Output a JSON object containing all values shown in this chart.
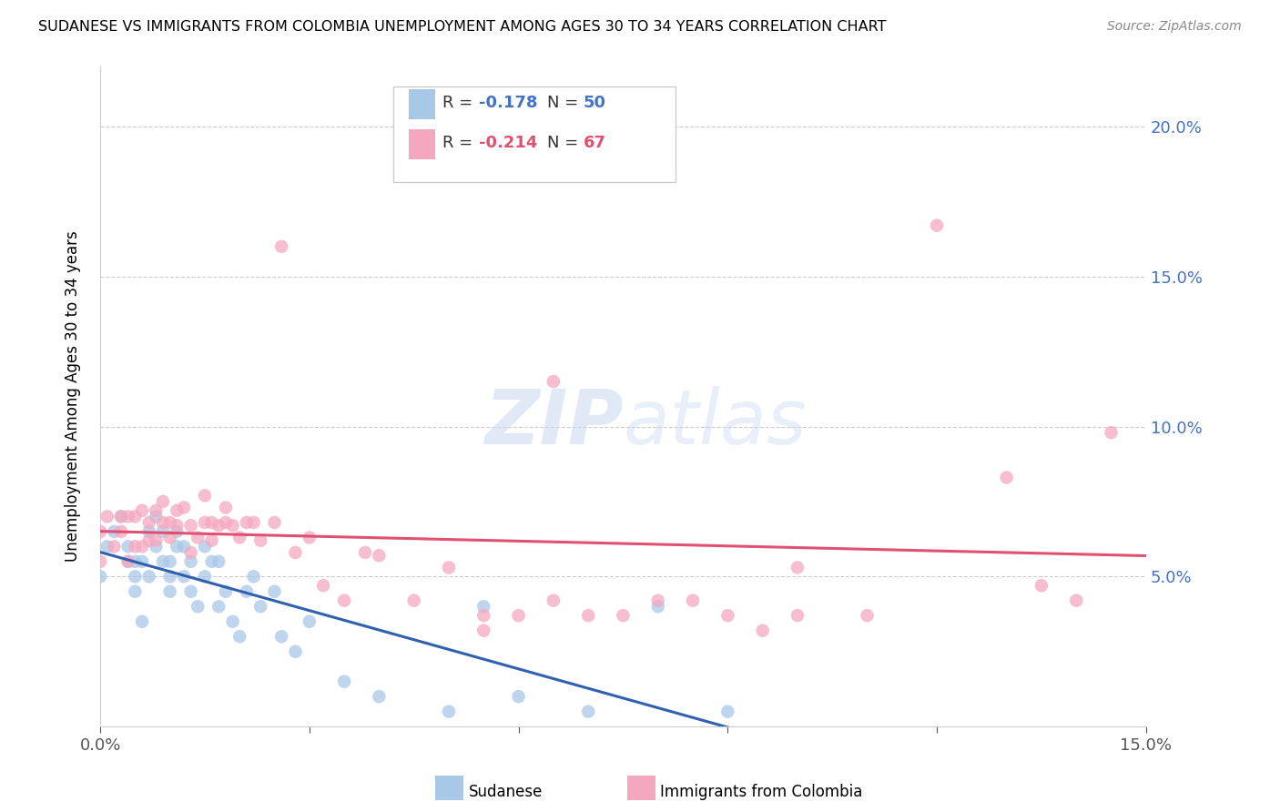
{
  "title": "SUDANESE VS IMMIGRANTS FROM COLOMBIA UNEMPLOYMENT AMONG AGES 30 TO 34 YEARS CORRELATION CHART",
  "source": "Source: ZipAtlas.com",
  "ylabel": "Unemployment Among Ages 30 to 34 years",
  "xlim": [
    0.0,
    0.15
  ],
  "ylim": [
    0.0,
    0.22
  ],
  "R_sudanese": -0.178,
  "N_sudanese": 50,
  "R_colombia": -0.214,
  "N_colombia": 67,
  "color_sudanese": "#A8C8E8",
  "color_colombia": "#F4A8C0",
  "line_color_sudanese": "#3060B0",
  "line_color_colombia": "#E05070",
  "sudanese_x": [
    0.0,
    0.001,
    0.002,
    0.003,
    0.004,
    0.004,
    0.005,
    0.005,
    0.005,
    0.006,
    0.006,
    0.007,
    0.007,
    0.008,
    0.008,
    0.009,
    0.009,
    0.01,
    0.01,
    0.01,
    0.011,
    0.011,
    0.012,
    0.012,
    0.013,
    0.013,
    0.014,
    0.015,
    0.015,
    0.016,
    0.017,
    0.017,
    0.018,
    0.019,
    0.02,
    0.021,
    0.022,
    0.023,
    0.025,
    0.026,
    0.028,
    0.03,
    0.035,
    0.04,
    0.05,
    0.055,
    0.06,
    0.07,
    0.08,
    0.09
  ],
  "sudanese_y": [
    0.05,
    0.06,
    0.065,
    0.07,
    0.055,
    0.06,
    0.045,
    0.05,
    0.055,
    0.035,
    0.055,
    0.05,
    0.065,
    0.06,
    0.07,
    0.055,
    0.065,
    0.05,
    0.055,
    0.045,
    0.06,
    0.065,
    0.05,
    0.06,
    0.045,
    0.055,
    0.04,
    0.05,
    0.06,
    0.055,
    0.04,
    0.055,
    0.045,
    0.035,
    0.03,
    0.045,
    0.05,
    0.04,
    0.045,
    0.03,
    0.025,
    0.035,
    0.015,
    0.01,
    0.005,
    0.04,
    0.01,
    0.005,
    0.04,
    0.005
  ],
  "colombia_x": [
    0.0,
    0.0,
    0.001,
    0.002,
    0.003,
    0.003,
    0.004,
    0.004,
    0.005,
    0.005,
    0.006,
    0.006,
    0.007,
    0.007,
    0.008,
    0.008,
    0.009,
    0.009,
    0.01,
    0.01,
    0.011,
    0.011,
    0.012,
    0.013,
    0.013,
    0.014,
    0.015,
    0.015,
    0.016,
    0.016,
    0.017,
    0.018,
    0.018,
    0.019,
    0.02,
    0.021,
    0.022,
    0.023,
    0.025,
    0.026,
    0.028,
    0.03,
    0.032,
    0.035,
    0.038,
    0.04,
    0.045,
    0.05,
    0.055,
    0.055,
    0.06,
    0.065,
    0.065,
    0.07,
    0.075,
    0.08,
    0.085,
    0.09,
    0.095,
    0.1,
    0.1,
    0.11,
    0.12,
    0.13,
    0.135,
    0.14,
    0.145
  ],
  "colombia_y": [
    0.065,
    0.055,
    0.07,
    0.06,
    0.065,
    0.07,
    0.055,
    0.07,
    0.06,
    0.07,
    0.06,
    0.072,
    0.062,
    0.068,
    0.062,
    0.072,
    0.068,
    0.075,
    0.063,
    0.068,
    0.067,
    0.072,
    0.073,
    0.058,
    0.067,
    0.063,
    0.068,
    0.077,
    0.068,
    0.062,
    0.067,
    0.068,
    0.073,
    0.067,
    0.063,
    0.068,
    0.068,
    0.062,
    0.068,
    0.16,
    0.058,
    0.063,
    0.047,
    0.042,
    0.058,
    0.057,
    0.042,
    0.053,
    0.032,
    0.037,
    0.037,
    0.042,
    0.115,
    0.037,
    0.037,
    0.042,
    0.042,
    0.037,
    0.032,
    0.053,
    0.037,
    0.037,
    0.167,
    0.083,
    0.047,
    0.042,
    0.098
  ]
}
